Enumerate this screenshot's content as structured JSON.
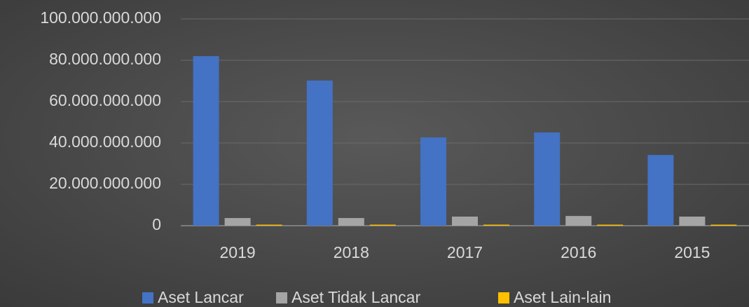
{
  "chart_data": {
    "type": "bar",
    "categories": [
      "2019",
      "2018",
      "2017",
      "2016",
      "2015"
    ],
    "series": [
      {
        "name": "Aset Lancar",
        "color": "#4472c4",
        "values": [
          82000000000,
          70200000000,
          42700000000,
          45100000000,
          34200000000
        ]
      },
      {
        "name": "Aset Tidak Lancar",
        "color": "#a5a5a5",
        "values": [
          3700000000,
          3700000000,
          4400000000,
          4700000000,
          4400000000
        ]
      },
      {
        "name": "Aset Lain-lain",
        "color": "#ffc000",
        "values": [
          500000000,
          500000000,
          500000000,
          500000000,
          500000000
        ]
      }
    ],
    "ylim": [
      0,
      100000000000
    ],
    "yticks": [
      0,
      {
        "value": 20000000000,
        "label": "20.000.000.000"
      },
      {
        "value": 40000000000,
        "label": "40.000.000.000"
      },
      {
        "value": 60000000000,
        "label": "60.000.000.000"
      },
      {
        "value": 80000000000,
        "label": "80.000.000.000"
      },
      {
        "value": 100000000000,
        "label": "100.000.000.000"
      }
    ],
    "grid": true,
    "legend": "bottom"
  }
}
